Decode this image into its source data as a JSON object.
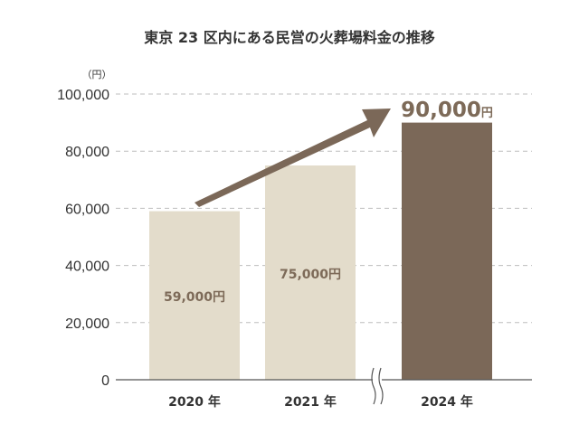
{
  "chart_data": {
    "type": "bar",
    "title": "東京 23 区内にある民営の火葬場料金の推移",
    "ylabel": "（円）",
    "ylim": [
      0,
      100000
    ],
    "yticks": [
      "0",
      "20,000",
      "40,000",
      "60,000",
      "80,000",
      "100,000"
    ],
    "categories": [
      "2020 年",
      "2021 年",
      "2024 年"
    ],
    "values": [
      59000,
      75000,
      90000
    ],
    "data_labels": [
      "59,000円",
      "75,000円",
      "90,000円"
    ],
    "grid": true,
    "axis_break_between": [
      "2021 年",
      "2024 年"
    ],
    "colors": {
      "past_bar": "#e3dccb",
      "highlight_bar": "#7b6858",
      "label_text": "#7d6a58",
      "arrow": "#7b6858",
      "grid": "#bdbdbd"
    }
  }
}
